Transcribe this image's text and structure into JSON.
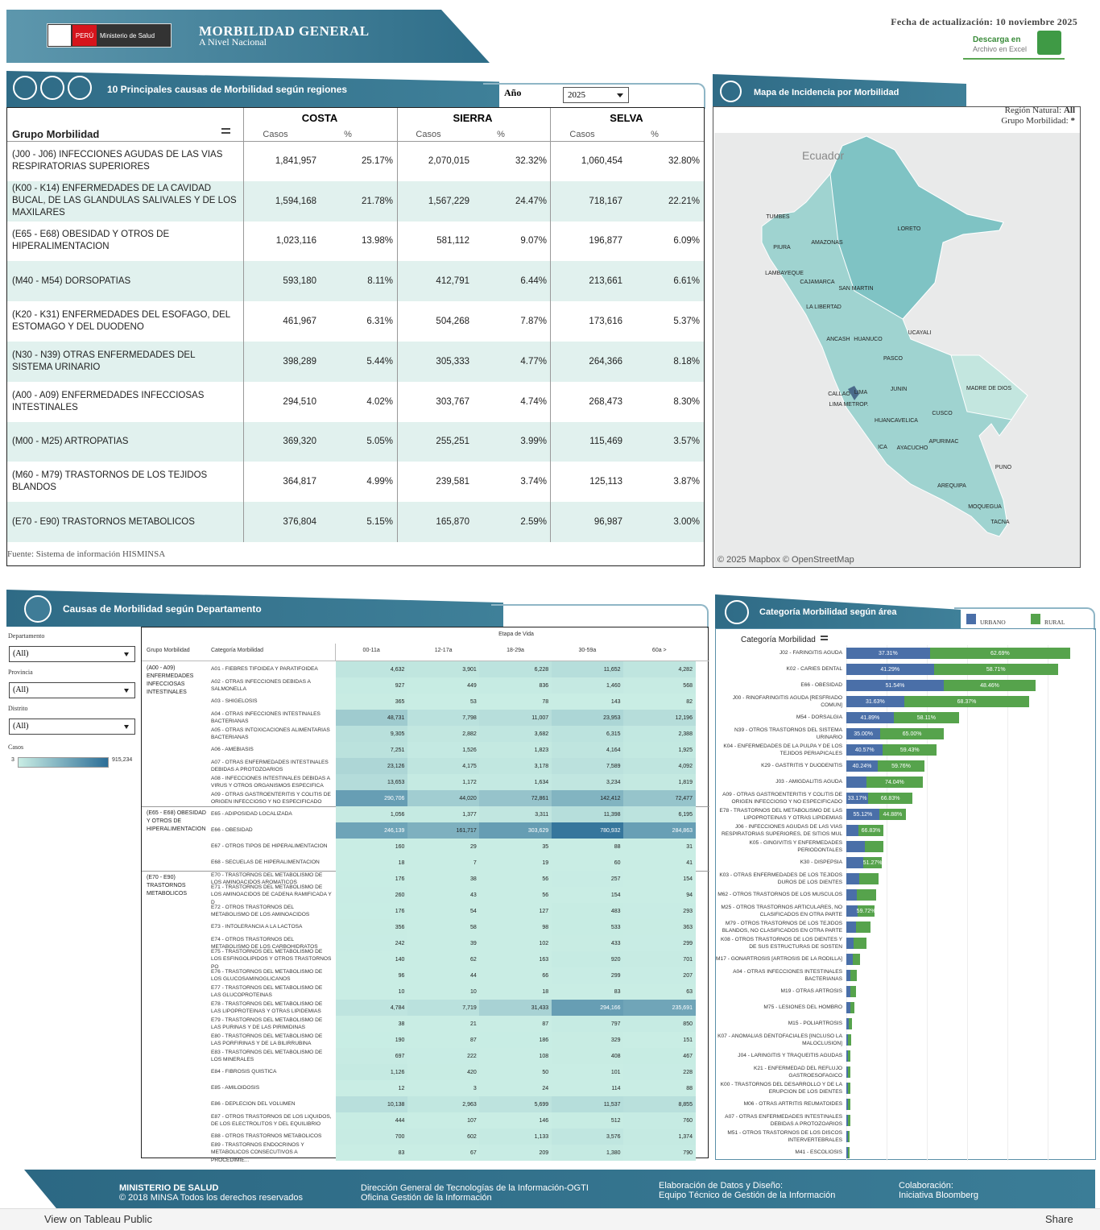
{
  "header": {
    "badge": "PERÚ",
    "ministry": "Ministerio de Salud",
    "title": "MORBILIDAD GENERAL",
    "subtitle": "A Nivel Nacional",
    "updated": "Fecha de actualización: 10 noviembre 2025",
    "download": "Descarga en",
    "download_sub": "Archivo en Excel"
  },
  "regions_table": {
    "title": "10 Principales causas de Morbilidad según regiones",
    "year_label": "Año",
    "year": "2025",
    "group_header": "Grupo Morbilidad",
    "regions": [
      "COSTA",
      "SIERRA",
      "SELVA"
    ],
    "col_casos": "Casos",
    "col_pct": "%",
    "rows": [
      {
        "name": "(J00 - J06) INFECCIONES AGUDAS DE LAS VIAS RESPIRATORIAS SUPERIORES",
        "values": [
          "1,841,957",
          "25.17%",
          "2,070,015",
          "32.32%",
          "1,060,454",
          "32.80%"
        ]
      },
      {
        "name": "(K00 - K14) ENFERMEDADES DE LA CAVIDAD BUCAL, DE LAS GLANDULAS SALIVALES Y DE LOS MAXILARES",
        "values": [
          "1,594,168",
          "21.78%",
          "1,567,229",
          "24.47%",
          "718,167",
          "22.21%"
        ]
      },
      {
        "name": "(E65 - E68) OBESIDAD Y OTROS DE HIPERALIMENTACION",
        "values": [
          "1,023,116",
          "13.98%",
          "581,112",
          "9.07%",
          "196,877",
          "6.09%"
        ]
      },
      {
        "name": "(M40 - M54) DORSOPATIAS",
        "values": [
          "593,180",
          "8.11%",
          "412,791",
          "6.44%",
          "213,661",
          "6.61%"
        ]
      },
      {
        "name": "(K20 - K31) ENFERMEDADES DEL ESOFAGO, DEL ESTOMAGO Y DEL DUODENO",
        "values": [
          "461,967",
          "6.31%",
          "504,268",
          "7.87%",
          "173,616",
          "5.37%"
        ]
      },
      {
        "name": "(N30 - N39) OTRAS ENFERMEDADES DEL SISTEMA URINARIO",
        "values": [
          "398,289",
          "5.44%",
          "305,333",
          "4.77%",
          "264,366",
          "8.18%"
        ]
      },
      {
        "name": "(A00 - A09) ENFERMEDADES INFECCIOSAS INTESTINALES",
        "values": [
          "294,510",
          "4.02%",
          "303,767",
          "4.74%",
          "268,473",
          "8.30%"
        ]
      },
      {
        "name": "(M00 - M25) ARTROPATIAS",
        "values": [
          "369,320",
          "5.05%",
          "255,251",
          "3.99%",
          "115,469",
          "3.57%"
        ]
      },
      {
        "name": "(M60 - M79) TRASTORNOS DE LOS TEJIDOS BLANDOS",
        "values": [
          "364,817",
          "4.99%",
          "239,581",
          "3.74%",
          "125,113",
          "3.87%"
        ]
      },
      {
        "name": "(E70 - E90) TRASTORNOS METABOLICOS",
        "values": [
          "376,804",
          "5.15%",
          "165,870",
          "2.59%",
          "96,987",
          "3.00%"
        ]
      }
    ],
    "source": "Fuente: Sistema de información HISMINSA"
  },
  "map": {
    "title": "Mapa de Incidencia por Morbilidad",
    "filter_region_label": "Región Natural:",
    "filter_region": "All",
    "filter_group_label": "Grupo Morbilidad:",
    "filter_group": "*",
    "country": "Ecuador",
    "regions": [
      "TUMBES",
      "PIURA",
      "AMAZONAS",
      "LORETO",
      "LAMBAYEQUE",
      "CAJAMARCA",
      "SAN MARTIN",
      "LA LIBERTAD",
      "UCAYALI",
      "ANCASH",
      "HUANUCO",
      "PASCO",
      "JUNIN",
      "MADRE DE DIOS",
      "CALLAO",
      "LIMA",
      "LIMA METROP.",
      "CUSCO",
      "HUANCAVELICA",
      "APURIMAC",
      "ICA",
      "AYACUCHO",
      "PUNO",
      "AREQUIPA",
      "MOQUEGUA",
      "TACNA"
    ],
    "attribution": "© 2025 Mapbox  © OpenStreetMap"
  },
  "department_table": {
    "title": "Causas de Morbilidad según Departamento",
    "filters": [
      {
        "label": "Departamento",
        "value": "(All)"
      },
      {
        "label": "Provincia",
        "value": "(All)"
      },
      {
        "label": "Distrito",
        "value": "(All)"
      }
    ],
    "legend_label": "Casos",
    "legend_min": "3",
    "legend_max": "915,234",
    "stage_header": "Etapa de Vida",
    "group_col": "Grupo Morbilidad",
    "category_col": "Categoría Morbilidad",
    "stages": [
      "00-11a",
      "12-17a",
      "18-29a",
      "30-59a",
      "60a >"
    ],
    "groups": [
      {
        "name": "(A00 - A09) ENFERMEDADES INFECCIOSAS INTESTINALES",
        "rows": [
          {
            "category": "A01 - FIEBRES TIFOIDEA Y PARATIFOIDEA",
            "values": [
              "4,632",
              "3,901",
              "6,228",
              "11,652",
              "4,282"
            ]
          },
          {
            "category": "A02 - OTRAS INFECCIONES DEBIDAS A SALMONELLA",
            "values": [
              "927",
              "449",
              "836",
              "1,460",
              "568"
            ]
          },
          {
            "category": "A03 - SHIGELOSIS",
            "values": [
              "365",
              "53",
              "78",
              "143",
              "82"
            ]
          },
          {
            "category": "A04 - OTRAS INFECCIONES INTESTINALES BACTERIANAS",
            "values": [
              "48,731",
              "7,798",
              "11,007",
              "23,953",
              "12,196"
            ]
          },
          {
            "category": "A05 - OTRAS INTOXICACIONES ALIMENTARIAS BACTERIANAS",
            "values": [
              "9,305",
              "2,882",
              "3,682",
              "6,315",
              "2,388"
            ]
          },
          {
            "category": "A06 - AMEBIASIS",
            "values": [
              "7,251",
              "1,526",
              "1,823",
              "4,164",
              "1,925"
            ]
          },
          {
            "category": "A07 - OTRAS ENFERMEDADES INTESTINALES DEBIDAS A PROTOZOARIOS",
            "values": [
              "23,126",
              "4,175",
              "3,178",
              "7,589",
              "4,092"
            ]
          },
          {
            "category": "A08 - INFECCIONES INTESTINALES DEBIDAS A VIRUS Y OTROS ORGANISMOS ESPECIFICA",
            "values": [
              "13,653",
              "1,172",
              "1,634",
              "3,234",
              "1,819"
            ]
          },
          {
            "category": "A09 - OTRAS GASTROENTERITIS Y COLITIS DE ORIGEN INFECCIOSO Y NO ESPECIFICADO",
            "values": [
              "290,706",
              "44,020",
              "72,861",
              "142,412",
              "72,477"
            ]
          }
        ]
      },
      {
        "name": "(E65 - E68) OBESIDAD Y OTROS DE HIPERALIMENTACION",
        "rows": [
          {
            "category": "E65 - ADIPOSIDAD LOCALIZADA",
            "values": [
              "1,056",
              "1,377",
              "3,311",
              "11,398",
              "6,195"
            ]
          },
          {
            "category": "E66 - OBESIDAD",
            "values": [
              "246,139",
              "161,717",
              "303,629",
              "780,932",
              "284,863"
            ]
          },
          {
            "category": "E67 - OTROS TIPOS DE HIPERALIMENTACION",
            "values": [
              "160",
              "29",
              "35",
              "88",
              "31"
            ]
          },
          {
            "category": "E68 - SECUELAS DE HIPERALIMENTACION",
            "values": [
              "18",
              "7",
              "19",
              "60",
              "41"
            ]
          }
        ]
      },
      {
        "name": "(E70 - E90) TRASTORNOS METABOLICOS",
        "rows": [
          {
            "category": "E70 - TRASTORNOS DEL METABOLISMO DE LOS AMINOACIDOS AROMATICOS",
            "values": [
              "176",
              "38",
              "56",
              "257",
              "154"
            ]
          },
          {
            "category": "E71 - TRASTORNOS DEL METABOLISMO DE LOS AMINOACIDOS DE CADENA RAMIFICADA Y D",
            "values": [
              "260",
              "43",
              "56",
              "154",
              "94"
            ]
          },
          {
            "category": "E72 - OTROS TRASTORNOS DEL METABOLISMO DE LOS AMINOACIDOS",
            "values": [
              "176",
              "54",
              "127",
              "483",
              "293"
            ]
          },
          {
            "category": "E73 - INTOLERANCIA A LA LACTOSA",
            "values": [
              "356",
              "58",
              "98",
              "533",
              "363"
            ]
          },
          {
            "category": "E74 - OTROS TRASTORNOS DEL METABOLISMO DE LOS CARBOHIDRATOS",
            "values": [
              "242",
              "39",
              "102",
              "433",
              "299"
            ]
          },
          {
            "category": "E75 - TRASTORNOS DEL METABOLISMO DE LOS ESFINGOLIPIDOS Y OTROS TRASTORNOS PO",
            "values": [
              "140",
              "62",
              "163",
              "920",
              "701"
            ]
          },
          {
            "category": "E76 - TRASTORNOS DEL METABOLISMO DE LOS GLUCOSAMINOGLICANOS",
            "values": [
              "96",
              "44",
              "66",
              "299",
              "207"
            ]
          },
          {
            "category": "E77 - TRASTORNOS DEL METABOLISMO DE LAS GLUCOPROTEINAS",
            "values": [
              "10",
              "10",
              "18",
              "83",
              "63"
            ]
          },
          {
            "category": "E78 - TRASTORNOS DEL METABOLISMO DE LAS LIPOPROTEINAS Y OTRAS LIPIDEMIAS",
            "values": [
              "4,784",
              "7,719",
              "31,433",
              "294,166",
              "235,691"
            ]
          },
          {
            "category": "E79 - TRASTORNOS DEL METABOLISMO DE LAS PURINAS Y DE LAS PIRIMIDINAS",
            "values": [
              "38",
              "21",
              "87",
              "797",
              "850"
            ]
          },
          {
            "category": "E80 - TRASTORNOS DEL METABOLISMO DE LAS PORFIRINAS Y DE LA BILIRRUBINA",
            "values": [
              "190",
              "87",
              "186",
              "329",
              "151"
            ]
          },
          {
            "category": "E83 - TRASTORNOS DEL METABOLISMO DE LOS MINERALES",
            "values": [
              "697",
              "222",
              "108",
              "408",
              "467"
            ]
          },
          {
            "category": "E84 - FIBROSIS QUISTICA",
            "values": [
              "1,126",
              "420",
              "50",
              "101",
              "228"
            ]
          },
          {
            "category": "E85 - AMILOIDOSIS",
            "values": [
              "12",
              "3",
              "24",
              "114",
              "88"
            ]
          },
          {
            "category": "E86 - DEPLECION DEL VOLUMEN",
            "values": [
              "10,138",
              "2,963",
              "5,699",
              "11,537",
              "8,855"
            ]
          },
          {
            "category": "E87 - OTROS TRASTORNOS DE LOS LIQUIDOS, DE LOS ELECTROLITOS Y DEL EQUILIBRIO",
            "values": [
              "444",
              "107",
              "146",
              "512",
              "760"
            ]
          },
          {
            "category": "E88 - OTROS TRASTORNOS METABOLICOS",
            "values": [
              "700",
              "602",
              "1,133",
              "3,576",
              "1,374"
            ]
          },
          {
            "category": "E89 - TRASTORNOS ENDOCRINOS Y METABOLICOS CONSECUTIVOS A PROCEDIMIE...",
            "values": [
              "83",
              "67",
              "209",
              "1,380",
              "790"
            ]
          }
        ]
      }
    ]
  },
  "chart_data": {
    "type": "bar",
    "title": "Categoría Morbilidad según área",
    "axis_title": "Categoría Morbilidad",
    "categories": [
      "J02 - FARINGITIS AGUDA",
      "K02 - CARIES DENTAL",
      "E66 - OBESIDAD",
      "J00 - RINOFARINGITIS AGUDA [RESFRIADO COMUN]",
      "M54 - DORSALGIA",
      "N39 - OTROS TRASTORNOS DEL SISTEMA URINARIO",
      "K04 - ENFERMEDADES DE LA PULPA Y DE LOS TEJIDOS PERIAPICALES",
      "K29 - GASTRITIS Y DUODENITIS",
      "J03 - AMIGDALITIS AGUDA",
      "A09 - OTRAS GASTROENTERITIS Y COLITIS DE ORIGEN INFECCIOSO Y NO ESPECIFICADO",
      "E78 - TRASTORNOS DEL METABOLISMO DE LAS LIPOPROTEINAS Y OTRAS LIPIDEMIAS",
      "J06 - INFECCIONES AGUDAS DE LAS VIAS RESPIRATORIAS SUPERIORES, DE SITIOS MUL",
      "K05 - GINGIVITIS Y ENFERMEDADES PERIODONTALES",
      "K30 - DISPEPSIA",
      "K03 - OTRAS ENFERMEDADES DE LOS TEJIDOS DUROS DE LOS DIENTES",
      "M62 - OTROS TRASTORNOS DE LOS MUSCULOS",
      "M25 - OTROS TRASTORNOS ARTICULARES, NO CLASIFICADOS EN OTRA PARTE",
      "M79 - OTROS TRASTORNOS DE LOS TEJIDOS BLANDOS, NO CLASIFICADOS EN OTRA PARTE",
      "K08 - OTROS TRASTORNOS DE LOS DIENTES Y DE SUS ESTRUCTURAS DE SOSTEN",
      "M17 - GONARTROSIS [ARTROSIS DE LA RODILLA]",
      "A04 - OTRAS INFECCIONES INTESTINALES BACTERIANAS",
      "M19 - OTRAS ARTROSIS",
      "M75 - LESIONES DEL HOMBRO",
      "M15 - POLIARTROSIS",
      "K07 - ANOMALIAS DENTOFACIALES [INCLUSO LA MALOCLUSION]",
      "J04 - LARINGITIS Y TRAQUEITIS AGUDAS",
      "K21 - ENFERMEDAD DEL REFLUJO GASTROESOFAGICO",
      "K00 - TRASTORNOS DEL DESARROLLO Y DE LA ERUPCION DE LOS DIENTES",
      "M06 - OTRAS ARTRITIS REUMATOIDES",
      "A07 - OTRAS ENFERMEDADES INTESTINALES DEBIDAS A PROTOZOARIOS",
      "M51 - OTROS TRASTORNOS DE LOS DISCOS INTERVERTEBRALES",
      "M41 - ESCOLIOSIS"
    ],
    "totals": [
      100,
      94.6,
      84.5,
      81.7,
      50.4,
      43.5,
      40.3,
      34.9,
      34.2,
      29.5,
      26.6,
      16.5,
      16.5,
      15.8,
      14.4,
      13.3,
      12.6,
      10.8,
      9,
      6.1,
      4.7,
      4.3,
      3.6,
      2.5,
      2.2,
      1.8,
      1.8,
      1.8,
      1.8,
      1.8,
      1.4,
      1.4
    ],
    "series": [
      {
        "name": "URBANO",
        "color": "#4a6fa8",
        "values": [
          37.31,
          41.29,
          51.54,
          31.63,
          41.89,
          35,
          40.57,
          40.24,
          25.96,
          33.17,
          55.12,
          33.17,
          50,
          48.73,
          40,
          35,
          40.28,
          40,
          35,
          45,
          40,
          45,
          45,
          45,
          40,
          45,
          45,
          40,
          45,
          40,
          40,
          40
        ],
        "value_labels": [
          "37.31%",
          "41.29%",
          "51.54%",
          "31.63%",
          "41.89%",
          "35.00%",
          "40.57%",
          "40.24%",
          null,
          "33.17%",
          "55.12%",
          null,
          null,
          null,
          null,
          null,
          null,
          null,
          null,
          null,
          null,
          null,
          null,
          null,
          null,
          null,
          null,
          null,
          null,
          null,
          null,
          null
        ]
      },
      {
        "name": "RURAL",
        "color": "#56a34c",
        "values": [
          62.69,
          58.71,
          48.46,
          68.37,
          58.11,
          65,
          59.43,
          59.76,
          74.04,
          66.83,
          44.88,
          66.83,
          50,
          51.27,
          60,
          65,
          59.72,
          60,
          65,
          55,
          60,
          55,
          55,
          55,
          60,
          55,
          55,
          60,
          55,
          60,
          60,
          60
        ],
        "value_labels": [
          "62.69%",
          "58.71%",
          "48.46%",
          "68.37%",
          "58.11%",
          "65.00%",
          "59.43%",
          "59.76%",
          "74.04%",
          "66.83%",
          "44.88%",
          "66.83%",
          null,
          "51.27%",
          null,
          null,
          "59.72%",
          null,
          null,
          null,
          null,
          null,
          null,
          null,
          null,
          null,
          null,
          null,
          null,
          null,
          null,
          null
        ]
      }
    ]
  },
  "footer": {
    "org": "MINISTERIO DE SALUD",
    "rights": "© 2018 MINSA Todos los derechos reservados",
    "dept": "Dirección General de Tecnologías de la Información-OGTI",
    "office": "Oficina Gestión de la Información",
    "credits_label": "Elaboración de Datos y Diseño:",
    "credits": "Equipo Técnico de Gestión de la Información",
    "collab_label": "Colaboración:",
    "collab": "Iniciativa Bloomberg"
  },
  "toolbar": {
    "view": "View on Tableau Public",
    "share": "Share"
  }
}
